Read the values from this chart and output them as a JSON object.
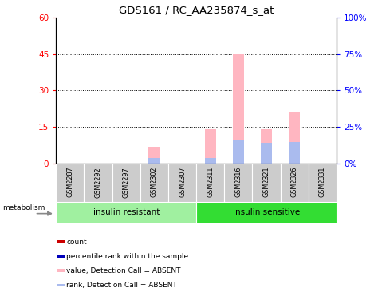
{
  "title": "GDS161 / RC_AA235874_s_at",
  "samples": [
    "GSM2287",
    "GSM2292",
    "GSM2297",
    "GSM2302",
    "GSM2307",
    "GSM2311",
    "GSM2316",
    "GSM2321",
    "GSM2326",
    "GSM2331"
  ],
  "absent_value": [
    0,
    0,
    0,
    7,
    0,
    14,
    45,
    14,
    21,
    0
  ],
  "absent_rank": [
    0,
    0,
    0,
    4,
    0,
    4,
    16,
    14,
    15,
    0
  ],
  "ylim_left": [
    0,
    60
  ],
  "ylim_right": [
    0,
    100
  ],
  "left_ticks": [
    0,
    15,
    30,
    45,
    60
  ],
  "right_ticks": [
    0,
    25,
    50,
    75,
    100
  ],
  "left_tick_labels": [
    "0",
    "15",
    "30",
    "45",
    "60"
  ],
  "right_tick_labels": [
    "0%",
    "25%",
    "50%",
    "75%",
    "100%"
  ],
  "group1_color": "#a0f0a0",
  "group2_color": "#33dd33",
  "absent_value_color": "#ffb6c1",
  "absent_rank_color": "#aabbee",
  "count_color": "#cc0000",
  "percentile_color": "#0000bb",
  "bar_width": 0.4,
  "sample_bg_color": "#cccccc",
  "legend_entries": [
    "count",
    "percentile rank within the sample",
    "value, Detection Call = ABSENT",
    "rank, Detection Call = ABSENT"
  ],
  "legend_colors": [
    "#cc0000",
    "#0000bb",
    "#ffb6c1",
    "#aabbee"
  ],
  "metabolism_label": "metabolism"
}
